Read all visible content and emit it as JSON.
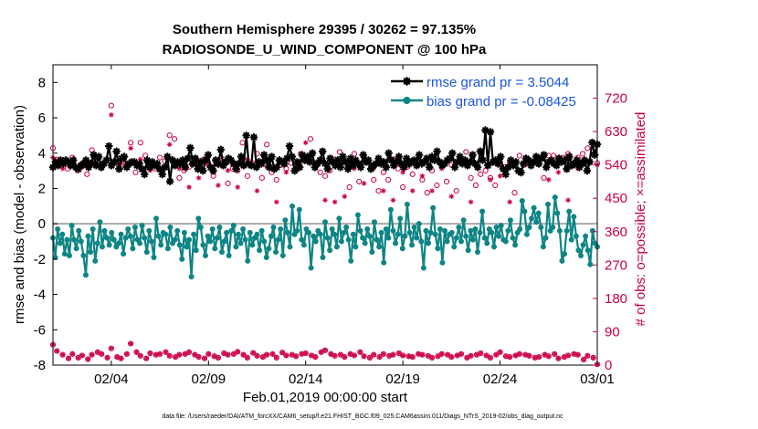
{
  "chart_data": {
    "type": "line",
    "title": "Southern Hemisphere 29395 / 30262 = 97.135%",
    "subtitle": "RADIOSONDE_U_WIND_COMPONENT @ 100 hPa",
    "xlabel": "Feb.01,2019 00:00:00 start",
    "ylabel": "rmse and bias (model - observation)",
    "ylabel_right": "# of obs: o=possible; ×=assimilated",
    "footnote": "data file: /Users/raeder/DAI/ATM_forcXX/CAM6_setup/f.e21.FHIST_BGC.f09_025.CAM6assim.011/Diags_NTrS_2019-02/obs_diag_output.nc",
    "xlim": [
      1,
      29
    ],
    "ylim": [
      -8,
      9
    ],
    "ylim_right": [
      0,
      810
    ],
    "x_ticks": [
      4,
      9,
      14,
      19,
      24,
      29
    ],
    "x_tick_labels": [
      "02/04",
      "02/09",
      "02/14",
      "02/19",
      "02/24",
      "03/01"
    ],
    "y_ticks": [
      -8,
      -6,
      -4,
      -2,
      0,
      2,
      4,
      6,
      8
    ],
    "y_tick_labels": [
      "-8",
      "-6",
      "-4",
      "-2",
      "0",
      "2",
      "4",
      "6",
      "8"
    ],
    "y_right_ticks": [
      0,
      90,
      180,
      270,
      360,
      450,
      540,
      630,
      720
    ],
    "y_right_tick_labels": [
      "0",
      "90",
      "180",
      "270",
      "360",
      "450",
      "540",
      "630",
      "720"
    ],
    "zero_line": 0,
    "colors": {
      "rmse": "#000000",
      "bias": "#0e8585",
      "obs": "#cc0044",
      "legend_text": "#1a55e0",
      "zero_line": "#aaaaaa"
    },
    "series": [
      {
        "name": "rmse grand pr = 3.5044",
        "values": [
          3.2,
          3.5,
          3.3,
          3.6,
          3.4,
          3.6,
          3.5,
          3.3,
          3.6,
          3.2,
          3.1,
          3.3,
          3.4,
          3.6,
          3.2,
          3.4,
          3.9,
          3.3,
          3.8,
          3.2,
          3.4,
          3.6,
          4.4,
          3.3,
          3.5,
          4.1,
          3.1,
          3.7,
          3.8,
          3.2,
          3.4,
          3.5,
          3.5,
          3.3,
          3.4,
          3.1,
          2.8,
          3.6,
          3.2,
          3.5,
          3.3,
          3.4,
          3.1,
          2.8,
          3.2,
          3.8,
          2.4,
          3.6,
          3.3,
          3.5,
          3.4,
          3.6,
          3.2,
          3.7,
          4.3,
          3.4,
          3.7,
          3.1,
          3.5,
          3.0,
          3.6,
          3.9,
          3.2,
          3.0,
          3.6,
          3.4,
          4.2,
          3.3,
          3.5,
          3.7,
          3.6,
          3.4,
          3.1,
          3.4,
          3.8,
          3.3,
          5.0,
          3.4,
          3.3,
          4.9,
          3.2,
          3.5,
          3.4,
          3.9,
          3.6,
          3.2,
          3.8,
          3.1,
          3.2,
          3.6,
          3.5,
          3.4,
          3.7,
          4.4,
          3.8,
          3.0,
          3.5,
          3.2,
          3.9,
          3.6,
          3.8,
          3.5,
          4.0,
          3.2,
          3.4,
          3.6,
          4.1,
          3.4,
          3.1,
          3.7,
          3.5,
          3.3,
          3.6,
          3.2,
          3.8,
          3.5,
          3.1,
          3.7,
          3.3,
          3.6,
          3.4,
          3.2,
          3.9,
          3.5,
          3.6,
          3.1,
          3.3,
          3.4,
          3.7,
          3.4,
          3.5,
          3.2,
          4.0,
          3.6,
          3.3,
          3.5,
          3.8,
          3.4,
          3.2,
          3.7,
          3.4,
          3.5,
          3.6,
          3.3,
          3.9,
          3.4,
          3.5,
          3.7,
          3.2,
          3.8,
          3.6,
          4.1,
          3.5,
          3.3,
          3.4,
          3.6,
          3.7,
          4.0,
          3.2,
          3.5,
          3.8,
          3.4,
          3.6,
          3.3,
          3.5,
          3.9,
          3.4,
          3.2,
          4.1,
          3.6,
          5.3,
          3.3,
          5.2,
          3.5,
          3.6,
          3.4,
          3.8,
          3.1,
          2.8,
          3.2,
          3.6,
          3.3,
          3.5,
          3.0,
          2.9,
          3.4,
          3.7,
          3.6,
          3.3,
          3.5,
          3.8,
          3.4,
          3.7,
          3.9,
          3.2,
          3.5,
          3.6,
          3.4,
          3.3,
          3.7,
          3.5,
          3.6,
          3.1,
          3.8,
          3.3,
          3.4,
          3.6,
          3.2,
          3.4,
          3.6,
          3.0,
          3.5,
          4.6,
          3.9,
          4.5
        ]
      },
      {
        "name": "bias grand pr = -0.08425",
        "values": [
          -0.8,
          -1.9,
          -0.3,
          -1.1,
          -0.6,
          -1.7,
          -0.9,
          -1.8,
          -0.1,
          -0.9,
          -1.4,
          -0.4,
          -1.0,
          -1.8,
          -2.9,
          -0.7,
          -1.6,
          -0.3,
          -2.1,
          -1.1,
          0.1,
          -1.3,
          -0.4,
          -0.8,
          -1.2,
          -0.5,
          -0.9,
          -1.3,
          -1.1,
          -0.6,
          -1.7,
          -0.8,
          -0.3,
          -0.7,
          -1.4,
          -0.2,
          -0.9,
          -1.1,
          -0.1,
          -0.8,
          -1.6,
          -0.4,
          -1.0,
          -1.9,
          0.3,
          -0.7,
          -1.2,
          -0.5,
          -0.6,
          -1.4,
          -0.2,
          -1.1,
          -0.9,
          -0.4,
          -1.2,
          -2.0,
          -0.5,
          -1.3,
          -0.9,
          -3.0,
          -0.6,
          -1.5,
          0.3,
          -0.2,
          -1.2,
          -1.8,
          -0.7,
          -1.0,
          -0.3,
          -1.4,
          -0.8,
          -0.2,
          -1.6,
          -1.0,
          -0.5,
          -1.8,
          -0.4,
          -0.1,
          -1.3,
          -0.6,
          -1.1,
          -0.3,
          -0.9,
          -2.1,
          -0.5,
          -1.2,
          -0.8,
          -0.6,
          -1.5,
          -0.4,
          -1.0,
          -1.9,
          -1.4,
          -0.7,
          -0.2,
          -1.6,
          -0.9,
          -0.3,
          -1.8,
          0.2,
          -0.5,
          -1.3,
          1.0,
          -0.6,
          -0.4,
          0.8,
          -0.9,
          -1.2,
          -0.3,
          -0.5,
          -2.5,
          -0.7,
          -1.0,
          -0.4,
          -0.6,
          -1.9,
          0.1,
          -0.8,
          -1.5,
          -0.3,
          -0.6,
          -1.3,
          0.3,
          -1.0,
          -0.5,
          -0.2,
          -0.9,
          -2.1,
          -0.6,
          -1.3,
          0.5,
          -0.4,
          -0.8,
          -1.1,
          -0.3,
          -0.7,
          -1.6,
          0.1,
          -0.9,
          -1.3,
          -0.5,
          -2.2,
          -0.3,
          -0.8,
          0.8,
          -0.4,
          -1.1,
          -0.6,
          0.3,
          -1.4,
          -0.7,
          1.1,
          -0.5,
          -1.2,
          -0.2,
          -0.8,
          0.0,
          -1.0,
          -2.5,
          -0.4,
          -1.1,
          -0.5,
          0.9,
          -0.6,
          -1.4,
          -0.3,
          -2.2,
          -0.4,
          -1.0,
          -0.6,
          -0.5,
          -1.3,
          -0.8,
          -0.2,
          -1.0,
          0.2,
          -0.7,
          -1.5,
          -0.4,
          -0.9,
          -0.3,
          -1.6,
          -0.5,
          0.7,
          -0.8,
          -1.1,
          -0.3,
          -0.5,
          -1.3,
          -0.2,
          -0.7,
          -0.1,
          -0.9,
          -1.0,
          -0.4,
          0.2,
          -0.8,
          -1.2,
          -0.5,
          -0.3,
          1.3,
          0.7,
          -0.6,
          -0.2,
          0.3,
          0.9,
          0.1,
          0.6,
          -0.2,
          -1.3,
          -0.8,
          1.1,
          -0.4,
          -0.2,
          1.5,
          0.6,
          -0.4,
          -2.1,
          -1.7,
          -0.4,
          0.7,
          -0.9,
          0.4,
          -0.7,
          -1.5,
          -1.8,
          -1.2,
          -0.7,
          -1.5,
          -2.3,
          -0.4,
          -1.1,
          -1.3
        ]
      }
    ],
    "obs_possible": {
      "x": [
        1.0,
        1.2,
        1.5,
        1.75,
        2.0,
        2.25,
        2.5,
        2.75,
        3.0,
        3.25,
        3.5,
        4.0,
        4.25,
        4.5,
        4.75,
        5.0,
        5.25,
        5.5,
        5.75,
        6.0,
        6.25,
        6.5,
        6.75,
        7.0,
        7.25,
        7.5,
        7.75,
        8.0,
        8.25,
        8.5,
        8.75,
        9.0,
        9.25,
        9.5,
        9.75,
        10.0,
        10.25,
        10.5,
        10.75,
        11.0,
        11.25,
        11.5,
        11.75,
        12.0,
        12.25,
        12.5,
        12.75,
        13.0,
        13.25,
        13.5,
        13.75,
        14.0,
        14.25,
        14.5,
        14.75,
        15.0,
        15.25,
        15.5,
        15.75,
        16.0,
        16.25,
        16.5,
        16.75,
        17.0,
        17.25,
        17.5,
        17.75,
        18.0,
        18.25,
        18.5,
        18.75,
        19.0,
        19.25,
        19.5,
        19.75,
        20.0,
        20.25,
        20.5,
        20.75,
        21.0,
        21.25,
        21.5,
        21.75,
        22.0,
        22.25,
        22.5,
        22.75,
        23.0,
        23.25,
        23.5,
        23.75,
        24.0,
        24.25,
        24.5,
        24.75,
        25.0,
        25.25,
        25.5,
        25.75,
        26.0,
        26.25,
        26.5,
        26.75,
        27.0,
        27.25,
        27.5,
        27.75,
        28.0,
        28.25,
        28.5,
        28.75,
        29.0
      ],
      "values": [
        585,
        555,
        545,
        530,
        560,
        525,
        535,
        515,
        580,
        560,
        540,
        700,
        545,
        535,
        545,
        600,
        520,
        600,
        565,
        545,
        530,
        560,
        550,
        620,
        610,
        505,
        525,
        535,
        545,
        535,
        555,
        540,
        510,
        540,
        555,
        490,
        530,
        525,
        600,
        510,
        545,
        570,
        505,
        595,
        520,
        500,
        540,
        530,
        545,
        525,
        570,
        550,
        610,
        545,
        520,
        510,
        525,
        555,
        575,
        540,
        480,
        570,
        495,
        560,
        545,
        500,
        470,
        520,
        500,
        555,
        530,
        480,
        535,
        515,
        550,
        500,
        465,
        525,
        485,
        545,
        495,
        540,
        470,
        545,
        575,
        505,
        485,
        515,
        525,
        505,
        485,
        540,
        535,
        545,
        465,
        565,
        540,
        550,
        550,
        555,
        505,
        565,
        565,
        555,
        560,
        570,
        545,
        560,
        570,
        585,
        600,
        545
      ]
    },
    "obs_assimilated": {
      "x": [
        1.0,
        1.5,
        2.0,
        2.5,
        3.0,
        3.5,
        4.0,
        4.5,
        5.0,
        5.5,
        6.0,
        6.5,
        7.0,
        7.5,
        8.0,
        8.5,
        9.0,
        9.5,
        10.0,
        10.5,
        11.0,
        11.5,
        12.0,
        12.5,
        13.0,
        13.5,
        14.0,
        14.5,
        15.0,
        15.5,
        16.0,
        16.5,
        17.0,
        17.5,
        18.0,
        18.5,
        19.0,
        19.5,
        20.0,
        20.5,
        21.0,
        21.5,
        22.0,
        22.5,
        23.0,
        23.5,
        24.0,
        24.5,
        25.0,
        25.5,
        26.0,
        26.5,
        27.0,
        27.5,
        28.0,
        28.5,
        29.0
      ],
      "values": [
        560,
        530,
        545,
        545,
        550,
        530,
        675,
        545,
        585,
        555,
        525,
        525,
        595,
        530,
        480,
        505,
        540,
        485,
        525,
        480,
        555,
        470,
        535,
        440,
        520,
        525,
        600,
        530,
        445,
        440,
        455,
        530,
        490,
        530,
        470,
        445,
        520,
        470,
        510,
        470,
        530,
        455,
        550,
        440,
        550,
        500,
        510,
        440,
        525,
        540,
        540,
        500,
        520,
        445,
        530,
        530,
        540
      ]
    },
    "obs_bottom": {
      "x": [
        1.0,
        1.2,
        1.5,
        1.8,
        2.0,
        2.3,
        2.5,
        2.8,
        3.0,
        3.3,
        3.5,
        3.8,
        4.0,
        4.3,
        4.5,
        4.8,
        5.0,
        5.3,
        5.5,
        5.8,
        6.0,
        6.3,
        6.5,
        6.8,
        7.0,
        7.3,
        7.5,
        7.8,
        8.0,
        8.3,
        8.5,
        8.8,
        9.0,
        9.3,
        9.5,
        9.8,
        10.0,
        10.3,
        10.5,
        10.8,
        11.0,
        11.3,
        11.5,
        11.8,
        12.0,
        12.3,
        12.5,
        12.8,
        13.0,
        13.3,
        13.5,
        13.8,
        14.0,
        14.3,
        14.5,
        14.8,
        15.0,
        15.3,
        15.5,
        15.8,
        16.0,
        16.3,
        16.5,
        16.8,
        17.0,
        17.3,
        17.5,
        17.8,
        18.0,
        18.3,
        18.5,
        18.8,
        19.0,
        19.3,
        19.5,
        19.8,
        20.0,
        20.3,
        20.5,
        20.8,
        21.0,
        21.3,
        21.5,
        21.8,
        22.0,
        22.3,
        22.5,
        22.8,
        23.0,
        23.3,
        23.5,
        23.8,
        24.0,
        24.3,
        24.5,
        24.8,
        25.0,
        25.3,
        25.5,
        25.8,
        26.0,
        26.3,
        26.5,
        26.8,
        27.0,
        27.3,
        27.5,
        27.8,
        28.0,
        28.3,
        28.5,
        28.8,
        29.0
      ],
      "values": [
        55,
        38,
        28,
        18,
        30,
        20,
        26,
        16,
        28,
        35,
        30,
        20,
        45,
        22,
        18,
        30,
        58,
        35,
        25,
        18,
        32,
        28,
        30,
        35,
        25,
        22,
        28,
        30,
        35,
        28,
        22,
        18,
        30,
        24,
        20,
        32,
        28,
        30,
        36,
        28,
        20,
        33,
        25,
        22,
        28,
        30,
        20,
        34,
        26,
        28,
        24,
        30,
        32,
        26,
        22,
        35,
        40,
        30,
        25,
        28,
        22,
        30,
        26,
        35,
        24,
        20,
        28,
        22,
        30,
        25,
        28,
        32,
        26,
        24,
        22,
        30,
        28,
        25,
        20,
        24,
        30,
        28,
        22,
        26,
        30,
        20,
        25,
        28,
        32,
        26,
        20,
        28,
        35,
        24,
        22,
        26,
        30,
        28,
        25,
        20,
        22,
        28,
        24,
        30,
        18,
        22,
        26,
        30,
        28,
        15,
        25,
        20,
        2
      ]
    }
  },
  "legend": {
    "rmse_label": "rmse grand pr = 3.5044",
    "bias_label": "bias grand pr = -0.08425"
  }
}
